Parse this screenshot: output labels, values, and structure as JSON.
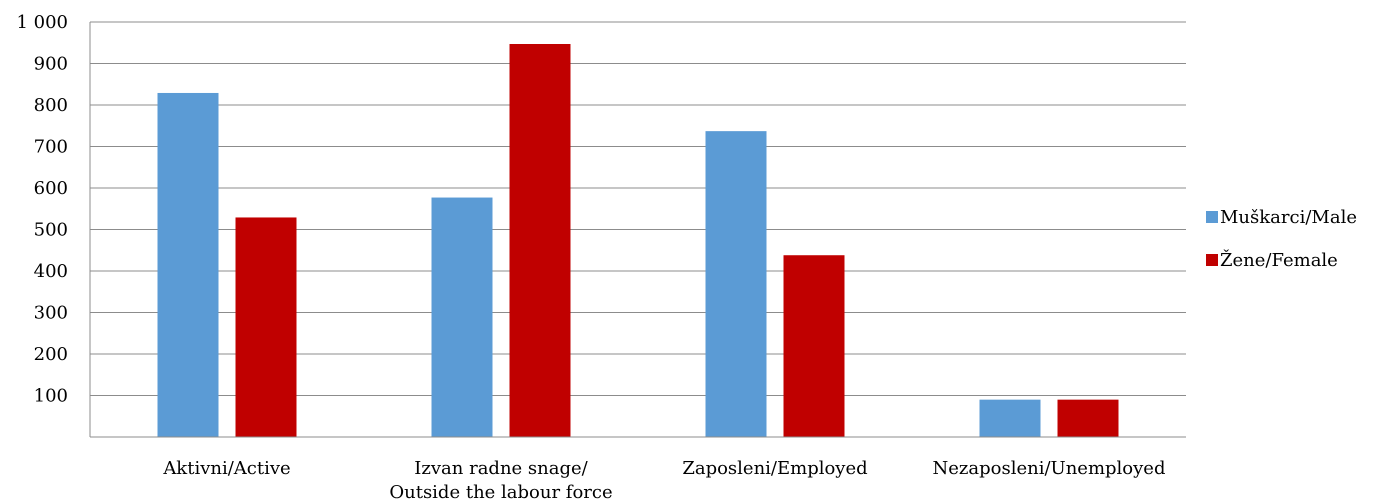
{
  "chart_data": {
    "type": "bar",
    "categories": [
      [
        "Aktivni/Active"
      ],
      [
        "Izvan radne snage/",
        "Outside the labour force"
      ],
      [
        "Zaposleni/Employed"
      ],
      [
        "Nezaposleni/Unemployed"
      ]
    ],
    "series": [
      {
        "name": "Muškarci/Male",
        "color": "#5b9bd5",
        "values": [
          829,
          577,
          737,
          90
        ]
      },
      {
        "name": "Žene/Female",
        "color": "#c00000",
        "values": [
          529,
          947,
          438,
          90
        ]
      }
    ],
    "yticks": [
      "100",
      "200",
      "300",
      "400",
      "500",
      "600",
      "700",
      "800",
      "900",
      "1 000"
    ],
    "ytick_values": [
      100,
      200,
      300,
      400,
      500,
      600,
      700,
      800,
      900,
      1000
    ],
    "ylim": [
      0,
      1000
    ],
    "grid": true,
    "legend_position": "right",
    "title": "",
    "xlabel": "",
    "ylabel": ""
  }
}
